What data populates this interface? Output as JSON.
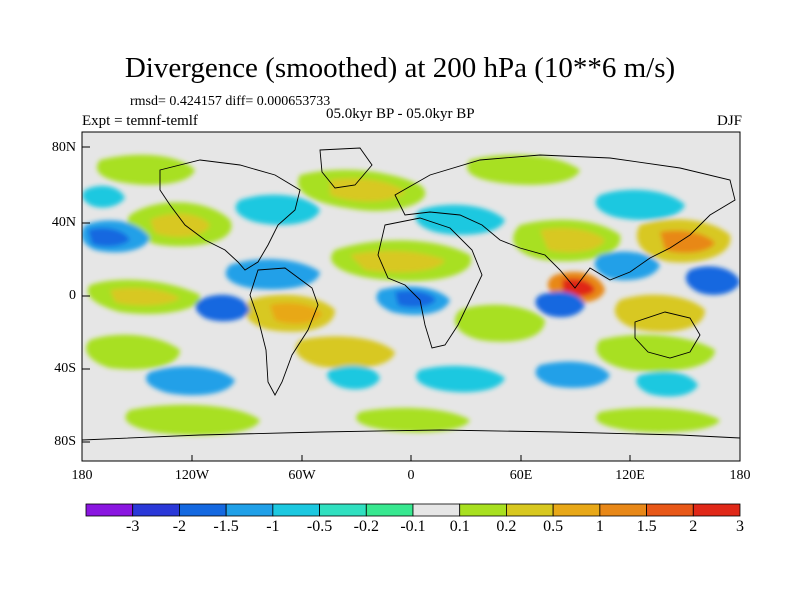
{
  "title": "Divergence (smoothed) at 200 hPa (10**6 m/s)",
  "stats": "rmsd= 0.424157 diff= 0.000653733",
  "experiment": "Expt = temnf-temlf",
  "period": "05.0kyr BP - 05.0kyr BP",
  "season": "DJF",
  "lat_labels": [
    "80N",
    "40N",
    "0",
    "40S",
    "80S"
  ],
  "lon_labels": [
    "180",
    "120W",
    "60W",
    "0",
    "60E",
    "120E",
    "180"
  ],
  "colorbar": {
    "labels": [
      "-3",
      "-2",
      "-1.5",
      "-1",
      "-0.5",
      "-0.2",
      "-0.1",
      "0.1",
      "0.2",
      "0.5",
      "1",
      "1.5",
      "2",
      "3"
    ],
    "colors": [
      "#8a16e0",
      "#2a38d8",
      "#1468e0",
      "#20a0e8",
      "#1cc8e0",
      "#30e0c0",
      "#38e890",
      "#e6e6e6",
      "#a8e020",
      "#d8c820",
      "#e8a818",
      "#e88818",
      "#e85818",
      "#e02818"
    ]
  }
}
